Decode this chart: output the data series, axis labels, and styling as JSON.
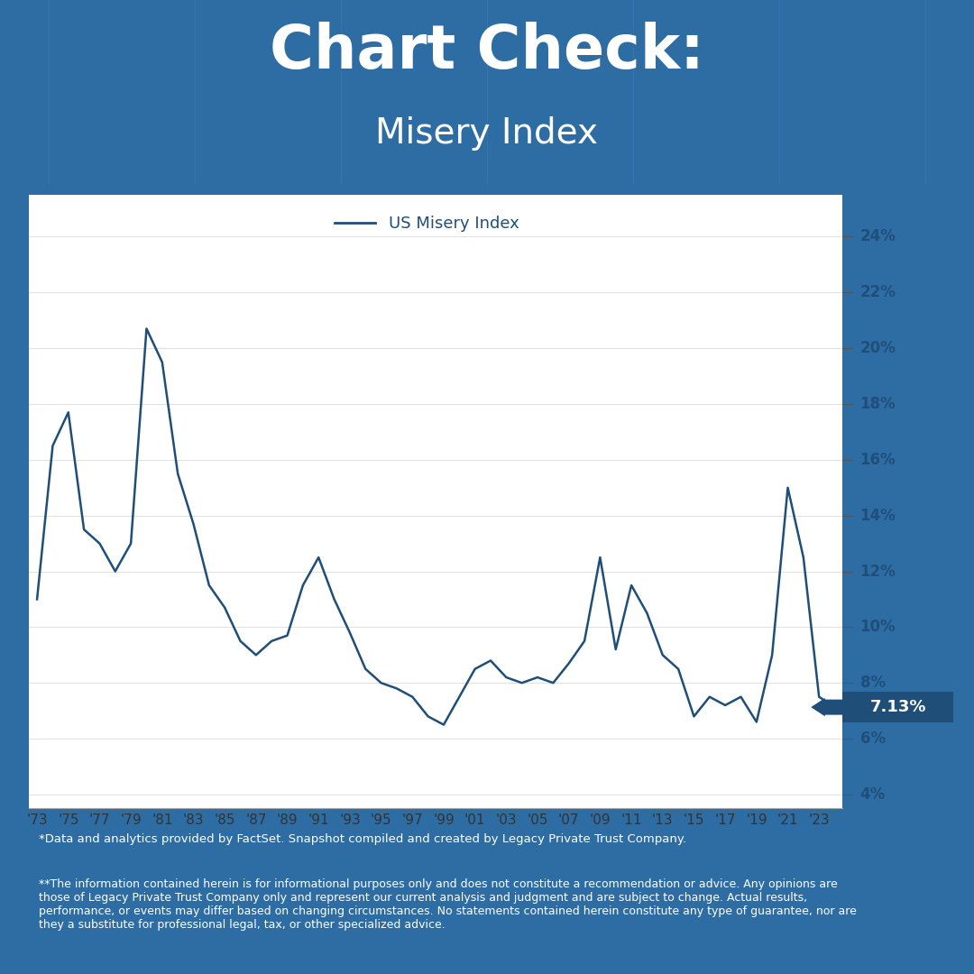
{
  "title_line1": "Chart Check:",
  "title_line2": "Misery Index",
  "bg_color": "#2e6da4",
  "chart_bg": "#ffffff",
  "line_color": "#1f4e79",
  "line_label": "US Misery Index",
  "last_value_label": "7.13%",
  "last_value_bg": "#1f4e79",
  "last_value_text": "#ffffff",
  "footer1": "*Data and analytics provided by FactSet. Snapshot compiled and created by Legacy Private Trust Company.",
  "footer2": "**The information contained herein is for informational purposes only and does not constitute a recommendation or advice. Any opinions are\nthose of Legacy Private Trust Company only and represent our current analysis and judgment and are subject to change. Actual results,\nperformance, or events may differ based on changing circumstances. No statements contained herein constitute any type of guarantee, nor are\nthey a substitute for professional legal, tax, or other specialized advice.",
  "yticks": [
    4,
    6,
    8,
    10,
    12,
    14,
    16,
    18,
    20,
    22,
    24
  ],
  "ytick_labels": [
    "4%",
    "6%",
    "8%",
    "10%",
    "12%",
    "14%",
    "16%",
    "18%",
    "20%",
    "22%",
    "24%"
  ],
  "ylim": [
    3.5,
    25.5
  ],
  "xtick_years": [
    1973,
    1975,
    1977,
    1979,
    1981,
    1983,
    1985,
    1987,
    1989,
    1991,
    1993,
    1995,
    1997,
    1999,
    2001,
    2003,
    2005,
    2007,
    2009,
    2011,
    2013,
    2015,
    2017,
    2019,
    2021,
    2023
  ],
  "xtick_labels": [
    "'73",
    "'75",
    "'77",
    "'79",
    "'81",
    "'83",
    "'85",
    "'87",
    "'89",
    "'91",
    "'93",
    "'95",
    "'97",
    "'99",
    "'01",
    "'03",
    "'05",
    "'07",
    "'09",
    "'11",
    "'13",
    "'15",
    "'17",
    "'19",
    "'21",
    "'23"
  ],
  "years": [
    1973,
    1974,
    1975,
    1976,
    1977,
    1978,
    1979,
    1980,
    1981,
    1982,
    1983,
    1984,
    1985,
    1986,
    1987,
    1988,
    1989,
    1990,
    1991,
    1992,
    1993,
    1994,
    1995,
    1996,
    1997,
    1998,
    1999,
    2000,
    2001,
    2002,
    2003,
    2004,
    2005,
    2006,
    2007,
    2008,
    2009,
    2010,
    2011,
    2012,
    2013,
    2014,
    2015,
    2016,
    2017,
    2018,
    2019,
    2020,
    2021,
    2022,
    2023,
    2024
  ],
  "values": [
    11.0,
    16.5,
    17.7,
    13.5,
    13.0,
    12.0,
    13.0,
    20.7,
    19.5,
    15.5,
    13.7,
    11.5,
    10.7,
    9.5,
    9.0,
    9.5,
    9.7,
    11.5,
    12.5,
    11.0,
    9.8,
    8.5,
    8.0,
    7.8,
    7.5,
    6.8,
    6.5,
    7.5,
    8.5,
    8.8,
    8.2,
    8.0,
    8.2,
    8.0,
    8.7,
    9.5,
    12.5,
    9.2,
    11.5,
    10.5,
    9.0,
    8.5,
    6.8,
    7.5,
    7.2,
    7.5,
    6.6,
    9.0,
    15.0,
    12.5,
    7.5,
    7.13
  ],
  "grid_color": "#e0e0e0",
  "axis_color": "#333333",
  "tick_color": "#333333",
  "font_color_dark": "#1f4e79",
  "footer_color": "#ffffff"
}
